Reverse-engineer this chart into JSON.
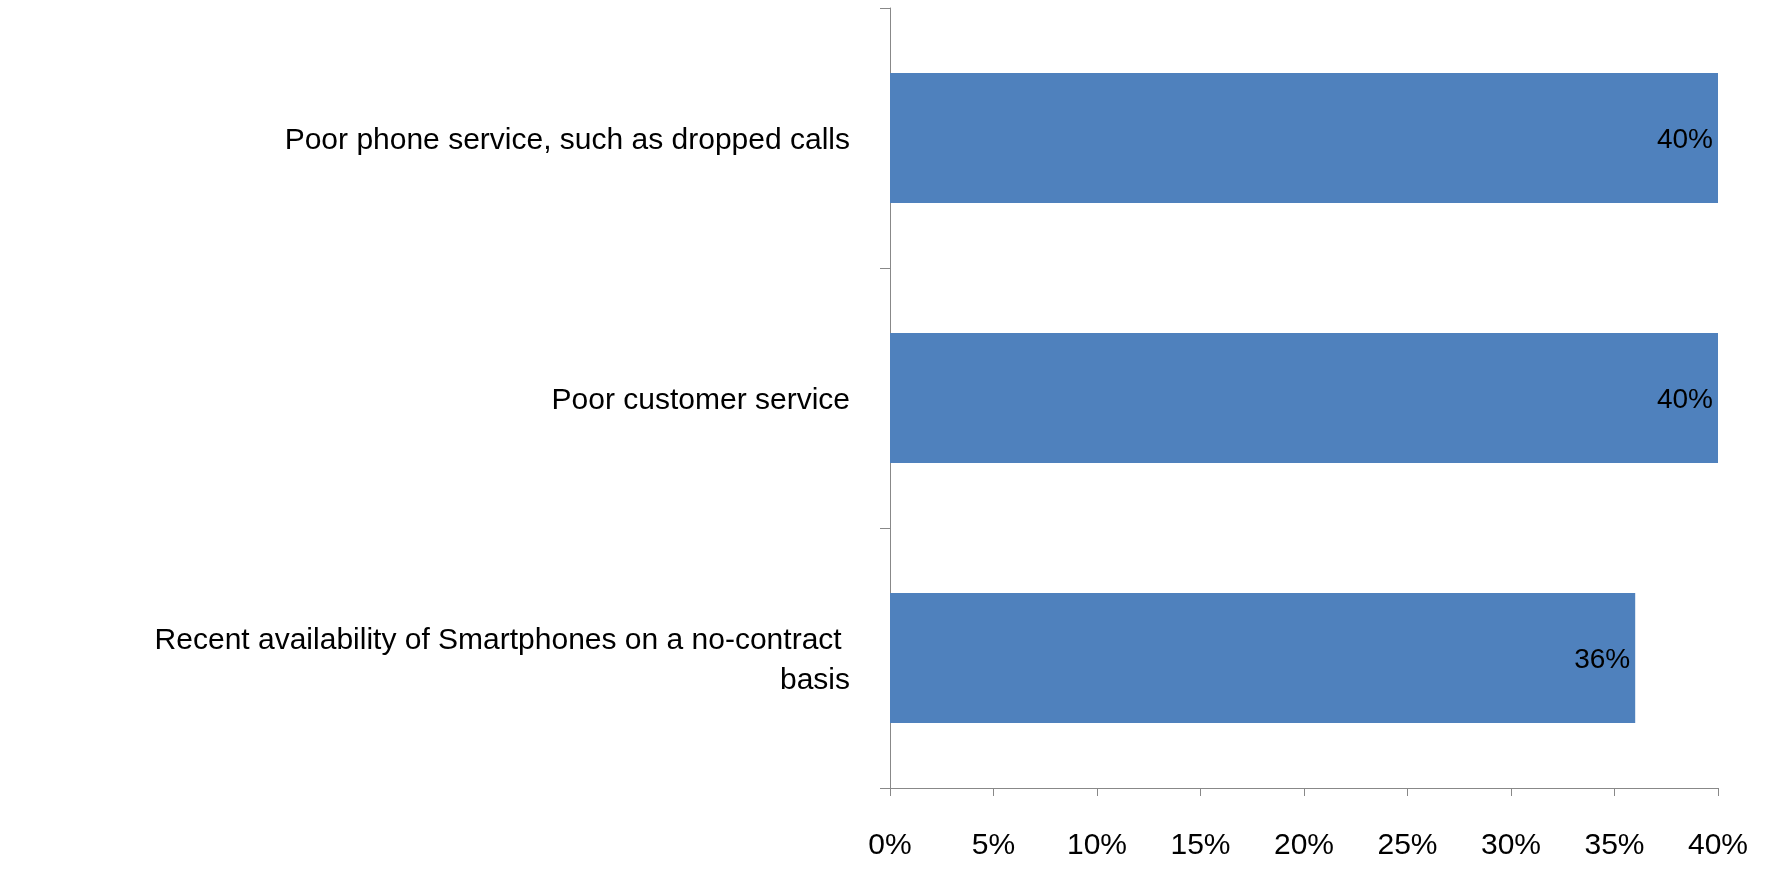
{
  "chart_data": {
    "type": "bar",
    "orientation": "horizontal",
    "categories": [
      "Poor phone service, such as dropped calls",
      "Poor customer service",
      "Recent availability of Smartphones on a no-contract basis"
    ],
    "values": [
      40,
      40,
      36
    ],
    "value_labels": [
      "40%",
      "40%",
      "36%"
    ],
    "color": "#4f81bd",
    "xlim": [
      0,
      40
    ],
    "xticks": [
      {
        "value": 0,
        "label": "0%"
      },
      {
        "value": 5,
        "label": "5%"
      },
      {
        "value": 10,
        "label": "10%"
      },
      {
        "value": 15,
        "label": "15%"
      },
      {
        "value": 20,
        "label": "20%"
      },
      {
        "value": 25,
        "label": "25%"
      },
      {
        "value": 30,
        "label": "30%"
      },
      {
        "value": 35,
        "label": "35%"
      },
      {
        "value": 40,
        "label": "40%"
      }
    ]
  }
}
